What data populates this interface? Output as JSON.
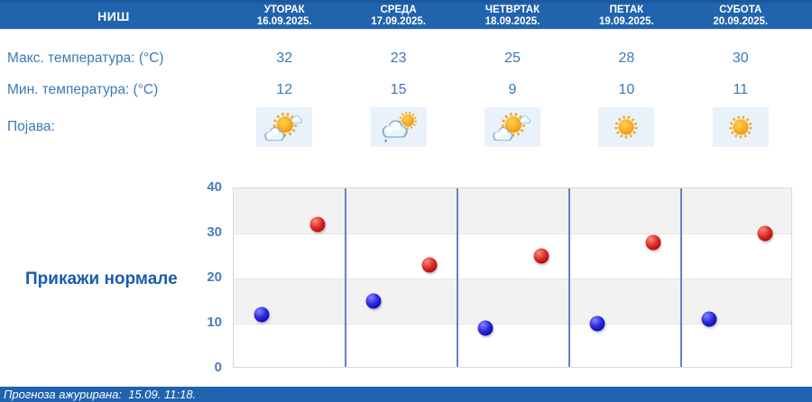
{
  "header": {
    "location": "НИШ",
    "days": [
      {
        "name": "УТОРАК",
        "date": "16.09.2025."
      },
      {
        "name": "СРЕДА",
        "date": "17.09.2025."
      },
      {
        "name": "ЧЕТВРТАК",
        "date": "18.09.2025."
      },
      {
        "name": "ПЕТАК",
        "date": "19.09.2025."
      },
      {
        "name": "СУБОТА",
        "date": "20.09.2025."
      }
    ]
  },
  "rows": {
    "max_label": "Макс. температура: (°C)",
    "min_label": "Мин. температура: (°C)",
    "phenomenon_label": "Појава:",
    "max_values": [
      32,
      23,
      25,
      28,
      30
    ],
    "min_values": [
      12,
      15,
      9,
      10,
      11
    ],
    "icons": [
      "sun-with-clouds-icon",
      "cloud-sun-light-rain-icon",
      "sun-with-clouds-icon",
      "sunny-icon",
      "sunny-icon"
    ]
  },
  "controls": {
    "show_normals_label": "Прикажи нормале"
  },
  "chart_data": {
    "type": "scatter",
    "categories": [
      "16.09.2025.",
      "17.09.2025.",
      "18.09.2025.",
      "19.09.2025.",
      "20.09.2025."
    ],
    "series": [
      {
        "name": "Мин. температура (°C)",
        "color": "#1d1dd0",
        "values": [
          12,
          15,
          9,
          10,
          11
        ]
      },
      {
        "name": "Макс. температура (°C)",
        "color": "#d01d1d",
        "values": [
          32,
          23,
          25,
          28,
          30
        ]
      }
    ],
    "ylim": [
      0,
      40
    ],
    "yticks": [
      0,
      10,
      20,
      30,
      40
    ],
    "grid": "horizontal-bands-every-10",
    "legend": "none",
    "day_dividers": true
  },
  "footer": {
    "updated_text": "Прогноза ажурирана:  15.09. 11:18."
  },
  "colors": {
    "header_bar": "#2063ae",
    "header_bar_top": "#1b579c",
    "text_blue": "#3a7ab8",
    "button_blue": "#1a5cad",
    "tick_blue": "#4a7cbe",
    "divider_blue": "#5b87c7",
    "band_gray": "#f2f2f2",
    "icon_bg": "#e9f2fb",
    "dot_min": "#1d1dd0",
    "dot_max": "#d01d1d"
  }
}
